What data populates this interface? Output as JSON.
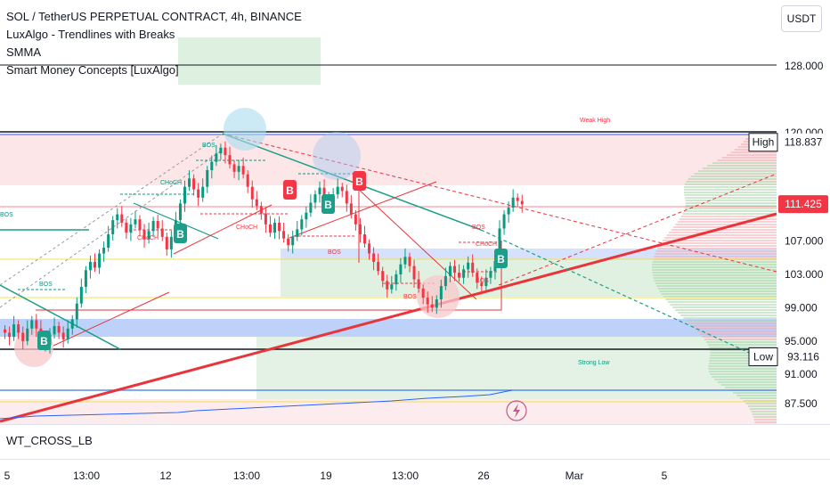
{
  "header": {
    "title": "SOL / TetherUS PERPETUAL CONTRACT, 4h, BINANCE",
    "indicators": [
      "LuxAlgo - Trendlines with Breaks",
      "SMMA",
      "Smart Money Concepts [LuxAlgo]"
    ],
    "currency_button": "USDT"
  },
  "lower_pane": {
    "label": "WT_CROSS_LB"
  },
  "colors": {
    "bull": "#089981",
    "bear": "#f23645",
    "trendline_red": "#e8343b",
    "teal": "#1b9e8a",
    "price_tag": "#f23645",
    "blue_zone": "#5b8def",
    "yellow": "#f4e04d",
    "green_zone": "#c8e6c9",
    "pink_zone": "#f8c8cc"
  },
  "chart_data": {
    "type": "candlestick",
    "y_axis": {
      "ticks": [
        128.0,
        120.0,
        107.0,
        103.0,
        99.0,
        95.0,
        91.0,
        87.5
      ],
      "tick_labels": [
        "128.000",
        "120.000",
        "107.000",
        "103.000",
        "99.000",
        "95.000",
        "91.000",
        "87.500"
      ]
    },
    "x_axis": {
      "tick_labels": [
        "5",
        "13:00",
        "12",
        "13:00",
        "19",
        "13:00",
        "26",
        "Mar",
        "5"
      ]
    },
    "price_labels": {
      "high": {
        "label": "High",
        "value": "118.837",
        "price": 118.837
      },
      "current": {
        "value": "111.425",
        "price": 111.425
      },
      "low": {
        "label": "Low",
        "value": "93.116",
        "price": 93.116
      }
    },
    "annotations": [
      "Weak High",
      "Strong Low",
      "BOS",
      "CHoCH",
      "B"
    ],
    "closes": [
      96.0,
      95.5,
      97.0,
      96.0,
      95.0,
      96.5,
      97.5,
      96.5,
      95.5,
      94.5,
      95.8,
      96.8,
      96.0,
      95.2,
      96.5,
      97.6,
      99.5,
      101.5,
      103.5,
      104.5,
      103.8,
      105.5,
      106.2,
      107.8,
      109.5,
      110.2,
      109.2,
      108.0,
      109.0,
      109.6,
      108.3,
      107.2,
      108.2,
      109.4,
      108.5,
      107.5,
      106.0,
      107.5,
      109.5,
      111.5,
      113.5,
      114.5,
      113.2,
      112.2,
      113.5,
      115.5,
      116.5,
      117.5,
      118.2,
      117.3,
      116.2,
      115.3,
      116.0,
      115.0,
      113.5,
      112.0,
      111.2,
      110.3,
      109.0,
      108.0,
      109.2,
      108.2,
      107.3,
      106.5,
      107.5,
      108.4,
      109.6,
      110.4,
      111.6,
      112.6,
      113.4,
      112.4,
      111.4,
      112.6,
      113.5,
      113.0,
      111.5,
      110.2,
      109.0,
      107.8,
      106.7,
      105.5,
      104.5,
      103.4,
      102.2,
      101.2,
      101.8,
      103.0,
      104.2,
      105.1,
      104.0,
      102.4,
      101.3,
      100.2,
      99.4,
      99.0,
      100.0,
      101.6,
      102.8,
      104.0,
      103.2,
      102.6,
      103.6,
      104.4,
      103.2,
      102.0,
      101.6,
      102.6,
      103.4,
      104.6,
      108.5,
      110.2,
      111.0,
      112.2,
      111.8,
      111.4
    ]
  }
}
